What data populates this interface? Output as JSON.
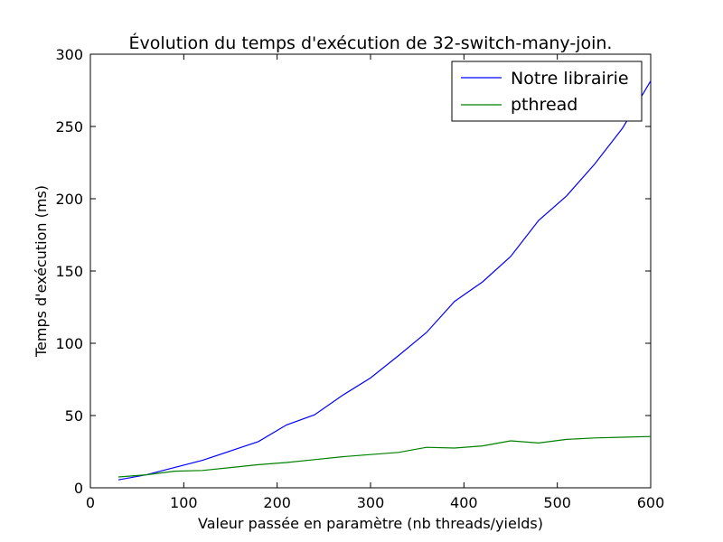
{
  "chart_data": {
    "type": "line",
    "title": "Évolution du temps d'exécution de 32-switch-many-join.",
    "xlabel": "Valeur passée en paramètre (nb threads/yields)",
    "ylabel": "Temps d'exécution (ms)",
    "xlim": [
      0,
      600
    ],
    "ylim": [
      0,
      300
    ],
    "xticks": [
      0,
      100,
      200,
      300,
      400,
      500,
      600
    ],
    "yticks": [
      0,
      50,
      100,
      150,
      200,
      250,
      300
    ],
    "xtick_labels": [
      "0",
      "100",
      "200",
      "300",
      "400",
      "500",
      "600"
    ],
    "ytick_labels": [
      "0",
      "50",
      "100",
      "150",
      "200",
      "250",
      "300"
    ],
    "grid": false,
    "legend_position": "top-right",
    "x": [
      30,
      60,
      90,
      120,
      150,
      180,
      210,
      240,
      270,
      300,
      330,
      360,
      390,
      420,
      450,
      480,
      510,
      540,
      570,
      600
    ],
    "series": [
      {
        "name": "Notre librairie",
        "color": "#0000ff",
        "values": [
          5.5,
          9,
          14,
          19,
          25.5,
          32,
          43.5,
          50.5,
          64,
          76,
          91.5,
          107.5,
          129,
          142.5,
          160,
          185,
          202,
          224,
          249,
          281.5
        ]
      },
      {
        "name": "pthread",
        "color": "#008000",
        "values": [
          7.5,
          9,
          11.5,
          12,
          14,
          16,
          17.5,
          19.5,
          21.5,
          23,
          24.5,
          28,
          27.5,
          29,
          32.5,
          31,
          33.5,
          34.5,
          35,
          35.5
        ]
      }
    ]
  }
}
